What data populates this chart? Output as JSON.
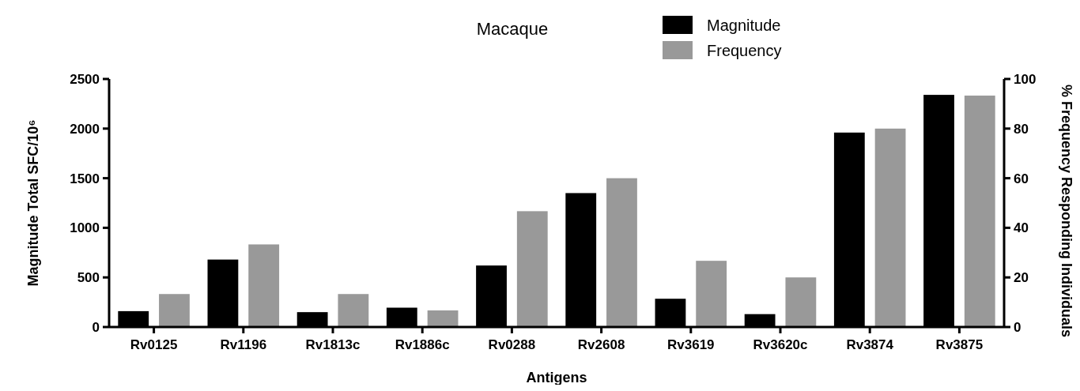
{
  "chart_data": {
    "type": "bar",
    "title": "Macaque",
    "xlabel": "Antigens",
    "ylabel": "Magnitude Total SFC/10⁶",
    "y2label": "% Frequency Responding Individuals",
    "categories": [
      "Rv0125",
      "Rv1196",
      "Rv1813c",
      "Rv1886c",
      "Rv0288",
      "Rv2608",
      "Rv3619",
      "Rv3620c",
      "Rv3874",
      "Rv3875"
    ],
    "series": [
      {
        "name": "Magnitude",
        "color": "#000000",
        "values": [
          160,
          680,
          150,
          195,
          620,
          1350,
          285,
          130,
          1960,
          2340
        ]
      },
      {
        "name": "Frequency",
        "color": "#999999",
        "axis": "y2",
        "values": [
          13.3,
          33.3,
          13.3,
          6.7,
          46.7,
          60,
          26.7,
          20,
          80,
          93.3
        ]
      }
    ],
    "ylim": [
      0,
      2500
    ],
    "yticks": [
      0,
      500,
      1000,
      1500,
      2000,
      2500
    ],
    "y2lim": [
      0,
      100
    ],
    "y2ticks": [
      0,
      20,
      40,
      60,
      80,
      100
    ],
    "legend": "top",
    "grid": false
  }
}
